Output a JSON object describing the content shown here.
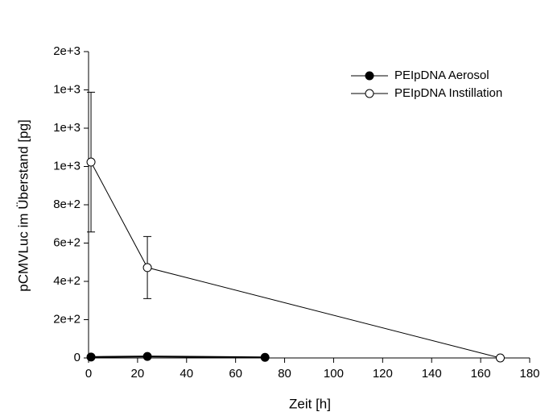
{
  "chart_data": {
    "type": "line",
    "x_label": "Zeit [h]",
    "y_label": "pCMVLuc im Überstand [pg]",
    "xlim": [
      0,
      180
    ],
    "xticks": [
      0,
      20,
      40,
      60,
      80,
      100,
      120,
      140,
      160,
      180
    ],
    "ylim": [
      0,
      1600
    ],
    "yticks": [
      0,
      {
        "value": 200,
        "label": "2e+2"
      },
      {
        "value": 400,
        "label": "4e+2"
      },
      {
        "value": 600,
        "label": "6e+2"
      },
      {
        "value": 800,
        "label": "8e+2"
      },
      {
        "value": 1000,
        "label": "1e+3"
      },
      {
        "value": 1200,
        "label": "1e+3"
      },
      {
        "value": 1400,
        "label": "1e+3"
      },
      {
        "value": 1600,
        "label": "2e+3"
      }
    ],
    "legend": "top-right",
    "series": [
      {
        "name": "PEIpDNA Aerosol",
        "color": "#000000",
        "marker": "filled",
        "x": [
          1,
          24,
          72
        ],
        "values": [
          5,
          8,
          3
        ]
      },
      {
        "name": "PEIpDNA Instillation",
        "color": "#000000",
        "marker": "open",
        "x": [
          1,
          24,
          168
        ],
        "values": [
          1023,
          472,
          0
        ],
        "errors": [
          365,
          162,
          null
        ]
      }
    ]
  }
}
